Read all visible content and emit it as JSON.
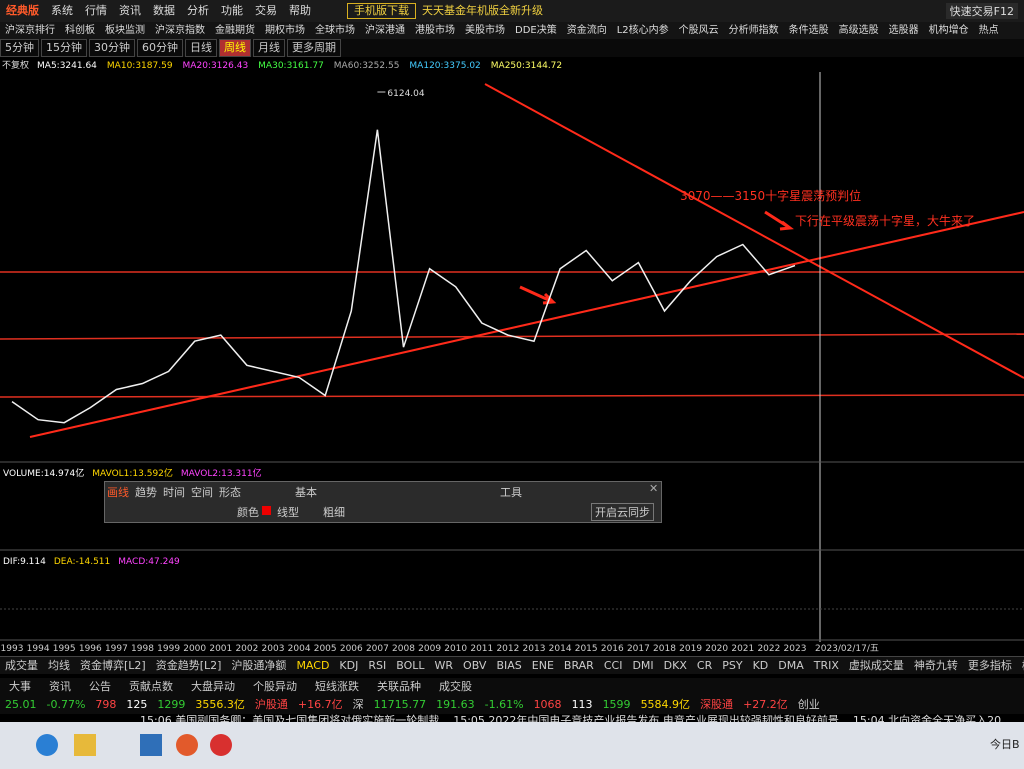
{
  "menu": {
    "logo": "经典版",
    "items": [
      "系统",
      "行情",
      "资讯",
      "数据",
      "分析",
      "功能",
      "交易",
      "帮助"
    ],
    "download": "手机版下载",
    "promo": "天天基金年机版全新升级",
    "trade": "快速交易F12"
  },
  "nav": [
    "沪深京排行",
    "科创板",
    "板块监测",
    "沪深京指数",
    "金融期货",
    "期权市场",
    "全球市场",
    "沪深港通",
    "港股市场",
    "美股市场",
    "DDE决策",
    "资金流向",
    "L2核心内参",
    "个股风云",
    "分析师指数",
    "条件选股",
    "高级选股",
    "选股器",
    "机构增仓",
    "热点"
  ],
  "periods": {
    "items": [
      "5分钟",
      "15分钟",
      "30分钟",
      "60分钟",
      "日线",
      "周线",
      "月线",
      "更多周期"
    ],
    "active": 5
  },
  "ma": {
    "prefix": "不复权",
    "items": [
      {
        "text": "MA5:3241.64",
        "color": "#ffffff"
      },
      {
        "text": "MA10:3187.59",
        "color": "#ffd700"
      },
      {
        "text": "MA20:3126.43",
        "color": "#ff44ff"
      },
      {
        "text": "MA30:3161.77",
        "color": "#44ff44"
      },
      {
        "text": "MA60:3252.55",
        "color": "#aaaaaa"
      },
      {
        "text": "MA120:3375.02",
        "color": "#44ccff"
      },
      {
        "text": "MA250:3144.72",
        "color": "#ffff66"
      }
    ]
  },
  "chart": {
    "peak": {
      "value": 6124.04,
      "label": "6124.04"
    },
    "years": [
      "1993",
      "1994",
      "1995",
      "1996",
      "1997",
      "1998",
      "1999",
      "2000",
      "2001",
      "2002",
      "2003",
      "2004",
      "2005",
      "2006",
      "2007",
      "2008",
      "2009",
      "2010",
      "2011",
      "2012",
      "2013",
      "2014",
      "2015",
      "2016",
      "2017",
      "2018",
      "2019",
      "2020",
      "2021",
      "2022",
      "2023"
    ],
    "close": [
      1000,
      700,
      650,
      900,
      1200,
      1300,
      1500,
      2000,
      2100,
      1600,
      1500,
      1400,
      1100,
      2500,
      5500,
      1900,
      3200,
      2900,
      2300,
      2100,
      2000,
      3200,
      3500,
      3000,
      3300,
      2500,
      3000,
      3400,
      3600,
      3100,
      3250
    ],
    "color": "#f0f0f0",
    "annotations": [
      "3070——3150十字星震荡预判位",
      "下行在平级震荡十字星，大牛来了"
    ],
    "date": "2023/02/17/五"
  },
  "volume": {
    "items": [
      {
        "text": "VOLUME:14.974亿",
        "color": "#ffffff"
      },
      {
        "text": "MAVOL1:13.592亿",
        "color": "#ffd700"
      },
      {
        "text": "MAVOL2:13.311亿",
        "color": "#ff44ff"
      }
    ]
  },
  "macd": {
    "items": [
      {
        "text": "DIF:9.114",
        "color": "#ffffff"
      },
      {
        "text": "DEA:-14.511",
        "color": "#ffd700"
      },
      {
        "text": "MACD:47.249",
        "color": "#ff44ff"
      }
    ]
  },
  "toolbox": {
    "tabs": [
      "画线",
      "趋势",
      "时间",
      "空间",
      "形态"
    ],
    "basic": "基本",
    "tools": "工具",
    "color": "颜色",
    "linetype": "线型",
    "width": "粗细",
    "sync": "开启云同步"
  },
  "tabs": [
    "成交量",
    "均线",
    "资金博弈[L2]",
    "资金趋势[L2]",
    "沪股通净额",
    "MACD",
    "KDJ",
    "RSI",
    "BOLL",
    "WR",
    "OBV",
    "BIAS",
    "ENE",
    "BRAR",
    "CCI",
    "DMI",
    "DKX",
    "CR",
    "PSY",
    "KD",
    "DMA",
    "TRIX",
    "虚拟成交量",
    "神奇九转",
    "更多指标",
    "模板"
  ],
  "status": {
    "tabs": [
      "大事",
      "资讯",
      "公告",
      "贡献点数",
      "大盘异动",
      "个股异动",
      "短线涨跌",
      "关联品种",
      "成交股"
    ],
    "quotes": [
      "25.01",
      "-0.77%",
      "798",
      "125",
      "1299",
      "3556.3亿",
      "沪股通",
      "+16.7亿",
      "深",
      "11715.77",
      "191.63",
      "-1.61%",
      "1068",
      "113",
      "1599",
      "5584.9亿",
      "深股通",
      "+27.2亿",
      "创业"
    ],
    "news": [
      "15:06 美国副国务卿：美国及七国集团将对俄实施新一轮制裁",
      "15:05 2022年中国电子竞技产业报告发布 电竞产业展现出较强韧性和良好前景",
      "15:04 北向资金全天净买入20."
    ]
  },
  "taskbar": {
    "clock": "今日B"
  }
}
